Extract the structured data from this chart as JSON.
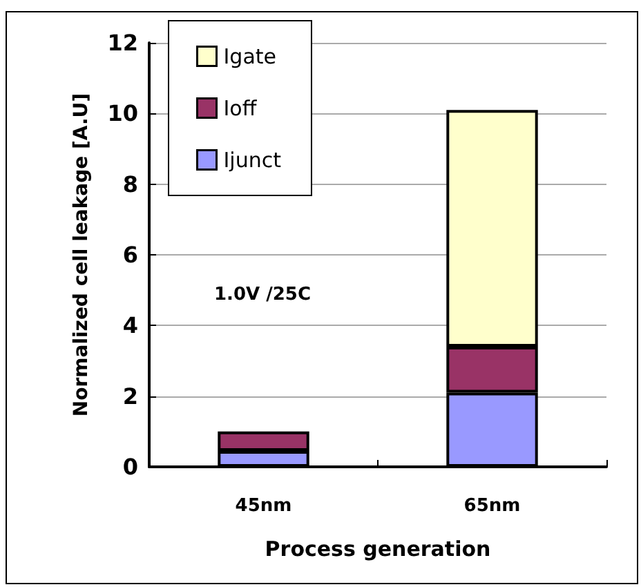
{
  "chart_data": {
    "type": "bar",
    "stacked": true,
    "xlabel": "Process generation",
    "ylabel": "Normalized cell leakage [A.U]",
    "categories": [
      "45nm",
      "65nm"
    ],
    "series": [
      {
        "name": "Ijunct",
        "color": "#9999ff",
        "values": [
          0.45,
          2.1
        ]
      },
      {
        "name": "Ioff",
        "color": "#993366",
        "values": [
          0.55,
          1.3
        ]
      },
      {
        "name": "Igate",
        "color": "#ffffcc",
        "values": [
          null,
          6.7
        ]
      }
    ],
    "ylim": [
      0,
      12
    ],
    "yticks": [
      0,
      2,
      4,
      6,
      8,
      10,
      12
    ],
    "grid": "y",
    "legend": "top left",
    "annotations": [
      "1.0V /25C"
    ]
  }
}
